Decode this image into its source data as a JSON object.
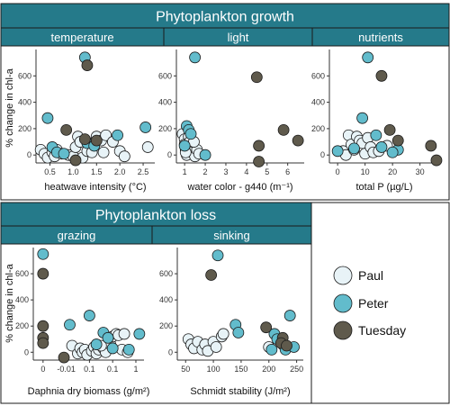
{
  "colors": {
    "strip": "#257a8a",
    "Paul": "#e8f3f7",
    "Peter": "#62bccc",
    "Tuesday": "#5f5a4c"
  },
  "top_title": "Phytoplankton growth",
  "bottom_title": "Phytoplankton loss",
  "ylabel": "% change in chl-a",
  "legend": [
    {
      "name": "Paul",
      "color": "#e8f3f7"
    },
    {
      "name": "Peter",
      "color": "#62bccc"
    },
    {
      "name": "Tuesday",
      "color": "#5f5a4c"
    }
  ],
  "chart_data": [
    {
      "type": "scatter",
      "title": "temperature",
      "xlabel": "heatwave intensity (°C)",
      "xlim": [
        0.2,
        2.75
      ],
      "ylim": [
        -60,
        800
      ],
      "xticks": [
        0.5,
        1.0,
        1.5,
        2.0,
        2.5
      ],
      "xticklabels": [
        "0.5",
        "1.0",
        "1.5",
        "2.0",
        "2.5"
      ],
      "yticks": [
        0,
        200,
        400,
        600
      ],
      "yticklabels": [
        "0",
        "200",
        "400",
        "600"
      ],
      "series": [
        {
          "name": "Paul",
          "points": [
            [
              0.3,
              40
            ],
            [
              0.38,
              10
            ],
            [
              0.45,
              -20
            ],
            [
              0.55,
              20
            ],
            [
              0.6,
              -10
            ],
            [
              0.65,
              40
            ],
            [
              0.75,
              10
            ],
            [
              0.9,
              0
            ],
            [
              1.0,
              -10
            ],
            [
              1.05,
              60
            ],
            [
              1.1,
              140
            ],
            [
              1.15,
              100
            ],
            [
              1.2,
              -20
            ],
            [
              1.3,
              30
            ],
            [
              1.35,
              90
            ],
            [
              1.4,
              20
            ],
            [
              1.5,
              140
            ],
            [
              1.6,
              110
            ],
            [
              1.65,
              20
            ],
            [
              1.7,
              150
            ],
            [
              1.85,
              100
            ],
            [
              2.0,
              30
            ],
            [
              2.1,
              -10
            ],
            [
              2.6,
              60
            ]
          ]
        },
        {
          "name": "Peter",
          "points": [
            [
              0.45,
              280
            ],
            [
              0.55,
              60
            ],
            [
              0.65,
              20
            ],
            [
              0.8,
              10
            ],
            [
              1.25,
              740
            ],
            [
              1.3,
              90
            ],
            [
              1.45,
              70
            ],
            [
              1.95,
              150
            ],
            [
              2.55,
              210
            ]
          ]
        },
        {
          "name": "Tuesday",
          "points": [
            [
              0.85,
              190
            ],
            [
              1.05,
              -40
            ],
            [
              1.25,
              120
            ],
            [
              1.3,
              680
            ],
            [
              1.5,
              110
            ]
          ]
        }
      ]
    },
    {
      "type": "scatter",
      "title": "light",
      "xlabel": "water color - g440 (m⁻¹)",
      "xlim": [
        0.6,
        6.8
      ],
      "ylim": [
        -60,
        800
      ],
      "xticks": [
        1,
        2,
        3,
        4,
        5,
        6
      ],
      "xticklabels": [
        "1",
        "2",
        "3",
        "4",
        "5",
        "6"
      ],
      "yticks": [
        0,
        200,
        400,
        600
      ],
      "yticklabels": [
        "0",
        "200",
        "400",
        "600"
      ],
      "series": [
        {
          "name": "Paul",
          "points": [
            [
              0.9,
              160
            ],
            [
              1.0,
              120
            ],
            [
              1.0,
              80
            ],
            [
              1.05,
              40
            ],
            [
              1.1,
              0
            ],
            [
              1.2,
              140
            ],
            [
              1.25,
              100
            ],
            [
              1.3,
              60
            ],
            [
              1.4,
              20
            ],
            [
              1.5,
              -10
            ],
            [
              1.6,
              40
            ],
            [
              1.7,
              10
            ],
            [
              1.05,
              20
            ],
            [
              1.45,
              100
            ]
          ]
        },
        {
          "name": "Peter",
          "points": [
            [
              1.1,
              220
            ],
            [
              1.2,
              190
            ],
            [
              1.3,
              160
            ],
            [
              1.5,
              740
            ],
            [
              2.0,
              0
            ],
            [
              1.0,
              70
            ]
          ]
        },
        {
          "name": "Tuesday",
          "points": [
            [
              4.5,
              590
            ],
            [
              4.6,
              70
            ],
            [
              4.6,
              -50
            ],
            [
              5.8,
              190
            ],
            [
              6.5,
              110
            ]
          ]
        }
      ]
    },
    {
      "type": "scatter",
      "title": "nutrients",
      "xlabel": "total P (µg/L)",
      "xlim": [
        -3,
        37
      ],
      "ylim": [
        -60,
        800
      ],
      "xticks": [
        0,
        10,
        20,
        30
      ],
      "xticklabels": [
        "0",
        "10",
        "20",
        "30"
      ],
      "yticks": [
        0,
        200,
        400,
        600
      ],
      "yticklabels": [
        "0",
        "200",
        "400",
        "600"
      ],
      "series": [
        {
          "name": "Paul",
          "points": [
            [
              2,
              30
            ],
            [
              3,
              0
            ],
            [
              4,
              150
            ],
            [
              5,
              80
            ],
            [
              6,
              40
            ],
            [
              7,
              140
            ],
            [
              8,
              110
            ],
            [
              9,
              90
            ],
            [
              10,
              10
            ],
            [
              11,
              130
            ],
            [
              12,
              60
            ],
            [
              13,
              20
            ],
            [
              15,
              30
            ],
            [
              18,
              70
            ]
          ]
        },
        {
          "name": "Peter",
          "points": [
            [
              0,
              30
            ],
            [
              6,
              50
            ],
            [
              9,
              280
            ],
            [
              11,
              740
            ],
            [
              14,
              150
            ],
            [
              16,
              60
            ],
            [
              22,
              40
            ],
            [
              20,
              20
            ]
          ]
        },
        {
          "name": "Tuesday",
          "points": [
            [
              16,
              600
            ],
            [
              19,
              190
            ],
            [
              22,
              110
            ],
            [
              34,
              70
            ],
            [
              36,
              -40
            ]
          ]
        }
      ]
    },
    {
      "type": "scatter",
      "title": "grazing",
      "xlabel": "Daphnia dry biomass (g/m²)",
      "xlim": [
        -0.42,
        4.35
      ],
      "ylim": [
        -60,
        800
      ],
      "xticks": [
        0,
        1,
        2,
        3,
        4
      ],
      "xticklabels": [
        "0",
        "-0.01",
        "0.1",
        "0.1",
        "1"
      ],
      "yticks": [
        0,
        200,
        400,
        600
      ],
      "yticklabels": [
        "0",
        "200",
        "400",
        "600"
      ],
      "series": [
        {
          "name": "Paul",
          "points": [
            [
              1.25,
              50
            ],
            [
              1.5,
              -10
            ],
            [
              1.6,
              30
            ],
            [
              1.7,
              0
            ],
            [
              1.8,
              20
            ],
            [
              1.9,
              -20
            ],
            [
              2.1,
              10
            ],
            [
              2.2,
              40
            ],
            [
              2.3,
              -10
            ],
            [
              2.4,
              20
            ],
            [
              2.6,
              30
            ],
            [
              2.7,
              0
            ],
            [
              2.9,
              60
            ],
            [
              3.0,
              120
            ],
            [
              3.15,
              140
            ],
            [
              3.25,
              130
            ],
            [
              3.4,
              20
            ],
            [
              3.5,
              140
            ],
            [
              3.65,
              0
            ],
            [
              2.5,
              50
            ]
          ]
        },
        {
          "name": "Peter",
          "points": [
            [
              0,
              750
            ],
            [
              1.15,
              210
            ],
            [
              2.0,
              280
            ],
            [
              2.3,
              60
            ],
            [
              2.6,
              150
            ],
            [
              2.8,
              110
            ],
            [
              3.0,
              30
            ],
            [
              3.7,
              20
            ],
            [
              4.15,
              140
            ]
          ]
        },
        {
          "name": "Tuesday",
          "points": [
            [
              0,
              600
            ],
            [
              0,
              200
            ],
            [
              0,
              110
            ],
            [
              0,
              70
            ],
            [
              0.9,
              -40
            ]
          ]
        }
      ]
    },
    {
      "type": "scatter",
      "title": "sinking",
      "xlabel": "Schmidt stability (J/m²)",
      "xlim": [
        35,
        262
      ],
      "ylim": [
        -60,
        800
      ],
      "xticks": [
        50,
        100,
        150,
        200,
        250
      ],
      "xticklabels": [
        "50",
        "100",
        "150",
        "200",
        "250"
      ],
      "yticks": [
        0,
        200,
        400,
        600
      ],
      "yticklabels": [
        "0",
        "200",
        "400",
        "600"
      ],
      "series": [
        {
          "name": "Paul",
          "points": [
            [
              55,
              100
            ],
            [
              60,
              60
            ],
            [
              65,
              30
            ],
            [
              72,
              80
            ],
            [
              80,
              20
            ],
            [
              85,
              60
            ],
            [
              90,
              10
            ],
            [
              100,
              80
            ],
            [
              105,
              40
            ],
            [
              115,
              120
            ],
            [
              118,
              140
            ],
            [
              200,
              40
            ]
          ]
        },
        {
          "name": "Peter",
          "points": [
            [
              108,
              740
            ],
            [
              140,
              210
            ],
            [
              145,
              150
            ],
            [
              205,
              20
            ],
            [
              210,
              140
            ],
            [
              215,
              100
            ],
            [
              225,
              60
            ],
            [
              230,
              20
            ],
            [
              238,
              280
            ],
            [
              245,
              40
            ]
          ]
        },
        {
          "name": "Tuesday",
          "points": [
            [
              96,
              590
            ],
            [
              195,
              190
            ],
            [
              225,
              110
            ],
            [
              222,
              70
            ],
            [
              232,
              50
            ]
          ]
        }
      ]
    }
  ]
}
